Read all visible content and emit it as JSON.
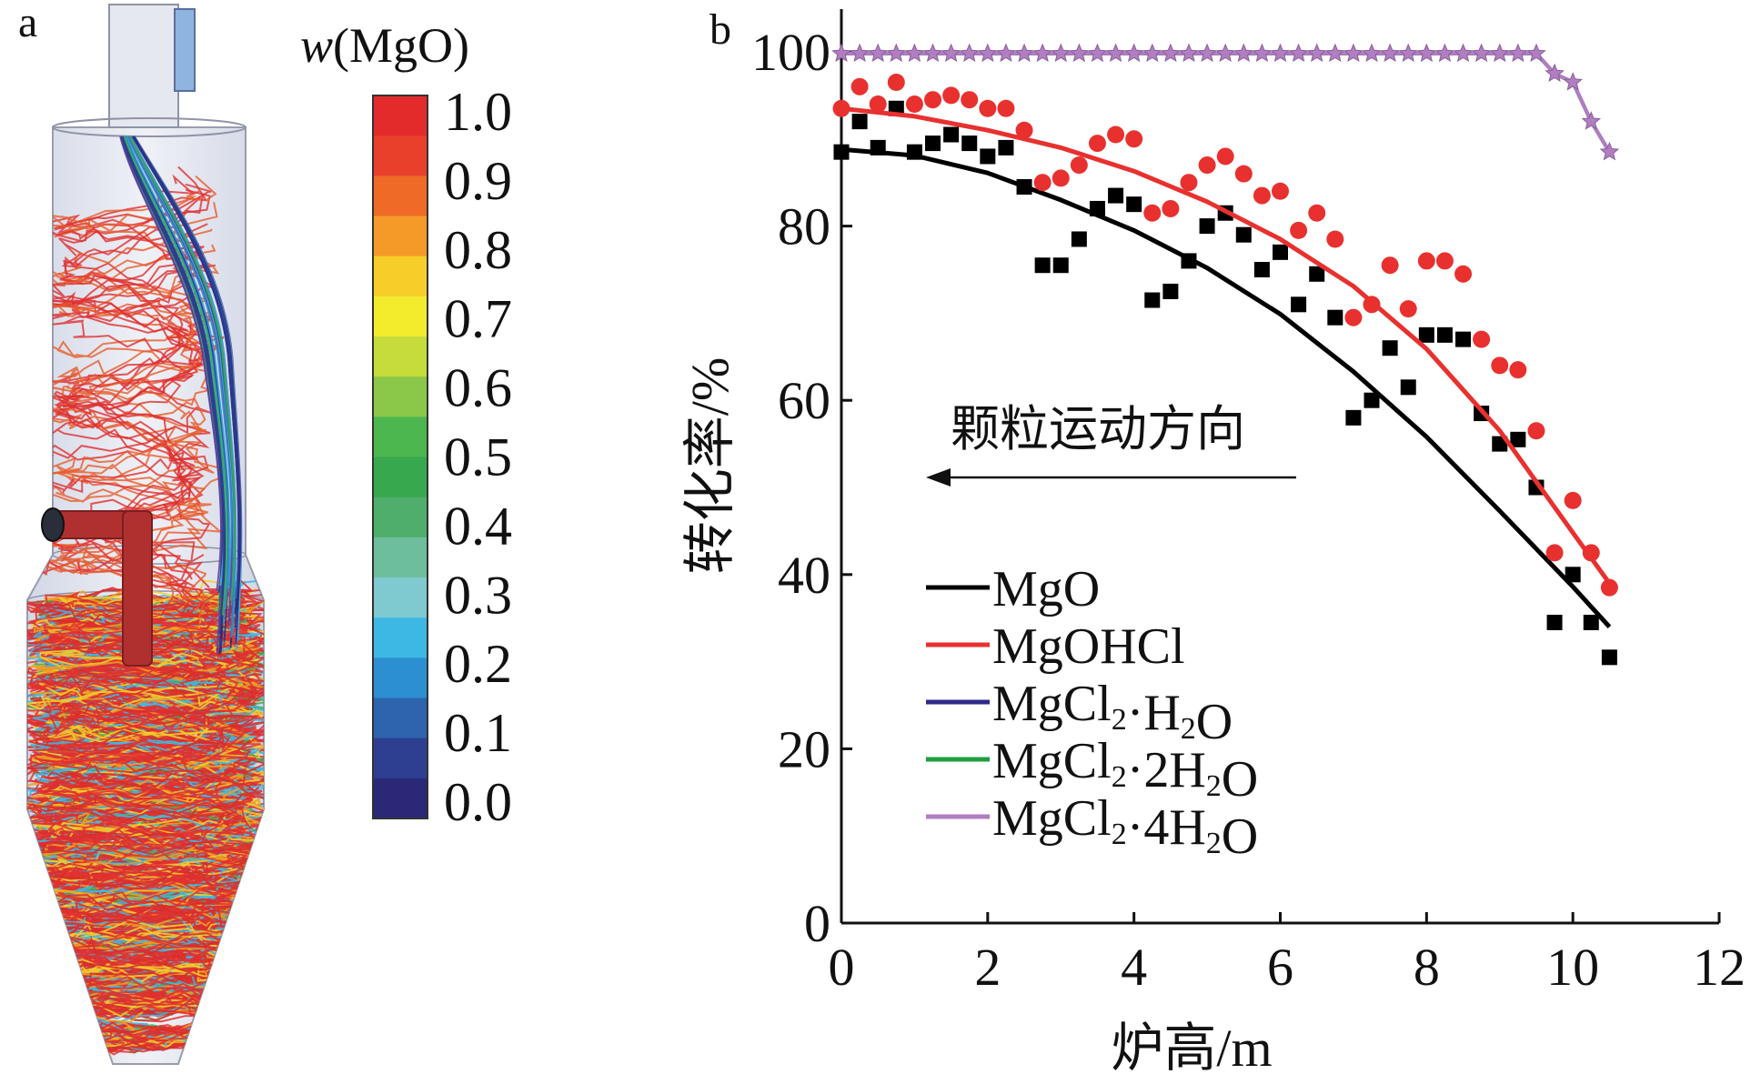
{
  "panel_a": {
    "letter": "a",
    "colorbar": {
      "title_italic": "w",
      "title_rest": "(MgO)",
      "ticks": [
        "1.0",
        "0.9",
        "0.8",
        "0.7",
        "0.6",
        "0.5",
        "0.4",
        "0.3",
        "0.2",
        "0.1",
        "0.0"
      ],
      "colors": [
        "#e32b2b",
        "#e8402a",
        "#ef6a27",
        "#f59a28",
        "#f7cd2a",
        "#f3ec2d",
        "#c5dc3a",
        "#8bc84a",
        "#4cb64f",
        "#37a84e",
        "#4fae6b",
        "#6dbe9c",
        "#7fcad0",
        "#3db8e4",
        "#2b8fd0",
        "#2e63ad",
        "#2e3f92",
        "#2b2878"
      ]
    },
    "colors": {
      "streamline_dominant": "#e03030",
      "streamline_top": "#2b2c8a",
      "vessel_fill": "#dfe3ef",
      "vessel_edge": "#8e93a6",
      "inlet_pipe": "#b03030",
      "outlet_tab": "#8fb4e0"
    }
  },
  "panel_b": {
    "letter": "b",
    "annotation": "颗粒运动方向"
  },
  "chart_data": {
    "type": "scatter",
    "xlabel": "炉高/m",
    "ylabel": "转化率/%",
    "xlim": [
      0,
      12
    ],
    "ylim": [
      0,
      100
    ],
    "xticks": [
      0,
      2,
      4,
      6,
      8,
      10,
      12
    ],
    "yticks": [
      0,
      20,
      40,
      60,
      80,
      100
    ],
    "grid": false,
    "legend_position": "lower-left",
    "series": [
      {
        "name": "MgO",
        "color": "#000000",
        "marker": "square",
        "points": [
          [
            0,
            88.5
          ],
          [
            0.25,
            92
          ],
          [
            0.5,
            89
          ],
          [
            0.75,
            93.5
          ],
          [
            1,
            88.5
          ],
          [
            1.25,
            89.5
          ],
          [
            1.5,
            90.5
          ],
          [
            1.75,
            89.5
          ],
          [
            2,
            88
          ],
          [
            2.25,
            89
          ],
          [
            2.5,
            84.5
          ],
          [
            2.75,
            75.5
          ],
          [
            3,
            75.5
          ],
          [
            3.25,
            78.5
          ],
          [
            3.5,
            82
          ],
          [
            3.75,
            83.5
          ],
          [
            4,
            82.5
          ],
          [
            4.25,
            71.5
          ],
          [
            4.5,
            72.5
          ],
          [
            4.75,
            76
          ],
          [
            5,
            80
          ],
          [
            5.25,
            81.5
          ],
          [
            5.5,
            79
          ],
          [
            5.75,
            75
          ],
          [
            6,
            77
          ],
          [
            6.25,
            71
          ],
          [
            6.5,
            74.5
          ],
          [
            6.75,
            69.5
          ],
          [
            7,
            58
          ],
          [
            7.25,
            60
          ],
          [
            7.5,
            66
          ],
          [
            7.75,
            61.5
          ],
          [
            8,
            67.5
          ],
          [
            8.25,
            67.5
          ],
          [
            8.5,
            67
          ],
          [
            8.75,
            58.5
          ],
          [
            9,
            55
          ],
          [
            9.25,
            55.5
          ],
          [
            9.5,
            50
          ],
          [
            9.75,
            34.5
          ],
          [
            10,
            40
          ],
          [
            10.25,
            34.5
          ],
          [
            10.5,
            30.5
          ]
        ],
        "fit": [
          [
            0,
            88.8
          ],
          [
            1,
            88.1
          ],
          [
            2,
            86.1
          ],
          [
            3,
            83
          ],
          [
            4,
            79.5
          ],
          [
            5,
            75.2
          ],
          [
            6,
            69.9
          ],
          [
            7,
            63.3
          ],
          [
            8,
            55.8
          ],
          [
            9,
            47.3
          ],
          [
            10,
            38.6
          ],
          [
            10.5,
            34
          ]
        ]
      },
      {
        "name": "MgOHCl",
        "color": "#e8312f",
        "marker": "circle",
        "points": [
          [
            0,
            93.5
          ],
          [
            0.25,
            96
          ],
          [
            0.5,
            94
          ],
          [
            0.75,
            96.5
          ],
          [
            1,
            94
          ],
          [
            1.25,
            94.5
          ],
          [
            1.5,
            95
          ],
          [
            1.75,
            94.5
          ],
          [
            2,
            93.5
          ],
          [
            2.25,
            93.5
          ],
          [
            2.5,
            91
          ],
          [
            2.75,
            85
          ],
          [
            3,
            85.5
          ],
          [
            3.25,
            87
          ],
          [
            3.5,
            89.5
          ],
          [
            3.75,
            90.5
          ],
          [
            4,
            90
          ],
          [
            4.25,
            81.5
          ],
          [
            4.5,
            82
          ],
          [
            4.75,
            85
          ],
          [
            5,
            87
          ],
          [
            5.25,
            88
          ],
          [
            5.5,
            86
          ],
          [
            5.75,
            83.5
          ],
          [
            6,
            84
          ],
          [
            6.25,
            79.5
          ],
          [
            6.5,
            81.5
          ],
          [
            6.75,
            78.5
          ],
          [
            7,
            69.5
          ],
          [
            7.25,
            71
          ],
          [
            7.5,
            75.5
          ],
          [
            7.75,
            70.5
          ],
          [
            8,
            76
          ],
          [
            8.25,
            76
          ],
          [
            8.5,
            74.5
          ],
          [
            8.75,
            67
          ],
          [
            9,
            64
          ],
          [
            9.25,
            63.5
          ],
          [
            9.5,
            56.5
          ],
          [
            9.75,
            42.5
          ],
          [
            10,
            48.5
          ],
          [
            10.25,
            42.5
          ],
          [
            10.5,
            38.5
          ]
        ],
        "fit": [
          [
            0,
            93.5
          ],
          [
            1,
            92.6
          ],
          [
            2,
            91
          ],
          [
            3,
            89
          ],
          [
            4,
            86.3
          ],
          [
            5,
            82.8
          ],
          [
            6,
            78.5
          ],
          [
            7,
            73.1
          ],
          [
            8,
            65.9
          ],
          [
            9,
            56.5
          ],
          [
            10,
            44.8
          ],
          [
            10.5,
            39
          ]
        ]
      },
      {
        "name": "MgCl₂·H₂O",
        "color": "#2e2a8a",
        "marker": "none",
        "points": [],
        "fit": [
          [
            0,
            99.8
          ],
          [
            9.5,
            99.8
          ],
          [
            9.75,
            97.5
          ],
          [
            10,
            96.5
          ],
          [
            10.25,
            92
          ],
          [
            10.5,
            88.5
          ]
        ]
      },
      {
        "name": "MgCl₂·2H₂O",
        "color": "#1f9e3e",
        "marker": "none",
        "points": [],
        "fit": [
          [
            0,
            99.8
          ],
          [
            9.5,
            99.8
          ],
          [
            9.75,
            97.5
          ],
          [
            10,
            96.5
          ],
          [
            10.25,
            92
          ],
          [
            10.5,
            88.5
          ]
        ]
      },
      {
        "name": "MgCl₂·4H₂O",
        "color": "#b07ec1",
        "marker": "star",
        "points": [
          [
            0,
            99.8
          ],
          [
            0.25,
            99.8
          ],
          [
            0.5,
            99.8
          ],
          [
            0.75,
            99.8
          ],
          [
            1,
            99.8
          ],
          [
            1.25,
            99.8
          ],
          [
            1.5,
            99.8
          ],
          [
            1.75,
            99.8
          ],
          [
            2,
            99.8
          ],
          [
            2.25,
            99.8
          ],
          [
            2.5,
            99.8
          ],
          [
            2.75,
            99.8
          ],
          [
            3,
            99.8
          ],
          [
            3.25,
            99.8
          ],
          [
            3.5,
            99.8
          ],
          [
            3.75,
            99.8
          ],
          [
            4,
            99.8
          ],
          [
            4.25,
            99.8
          ],
          [
            4.5,
            99.8
          ],
          [
            4.75,
            99.8
          ],
          [
            5,
            99.8
          ],
          [
            5.25,
            99.8
          ],
          [
            5.5,
            99.8
          ],
          [
            5.75,
            99.8
          ],
          [
            6,
            99.8
          ],
          [
            6.25,
            99.8
          ],
          [
            6.5,
            99.8
          ],
          [
            6.75,
            99.8
          ],
          [
            7,
            99.8
          ],
          [
            7.25,
            99.8
          ],
          [
            7.5,
            99.8
          ],
          [
            7.75,
            99.8
          ],
          [
            8,
            99.8
          ],
          [
            8.25,
            99.8
          ],
          [
            8.5,
            99.8
          ],
          [
            8.75,
            99.8
          ],
          [
            9,
            99.8
          ],
          [
            9.25,
            99.8
          ],
          [
            9.5,
            99.8
          ],
          [
            9.75,
            97.5
          ],
          [
            10,
            96.5
          ],
          [
            10.25,
            92
          ],
          [
            10.5,
            88.5
          ]
        ],
        "fit": [
          [
            0,
            99.8
          ],
          [
            9.5,
            99.8
          ],
          [
            9.75,
            97.5
          ],
          [
            10,
            96.5
          ],
          [
            10.25,
            92
          ],
          [
            10.5,
            88.5
          ]
        ]
      }
    ],
    "legend_labels": [
      {
        "base": "MgCl",
        "sub1": "2",
        "mid": "·H",
        "sub2": "2",
        "end": "O"
      },
      {
        "base": "MgCl",
        "sub1": "2",
        "mid": "·2H",
        "sub2": "2",
        "end": "O"
      },
      {
        "base": "MgCl",
        "sub1": "2",
        "mid": "·4H",
        "sub2": "2",
        "end": "O"
      }
    ]
  }
}
